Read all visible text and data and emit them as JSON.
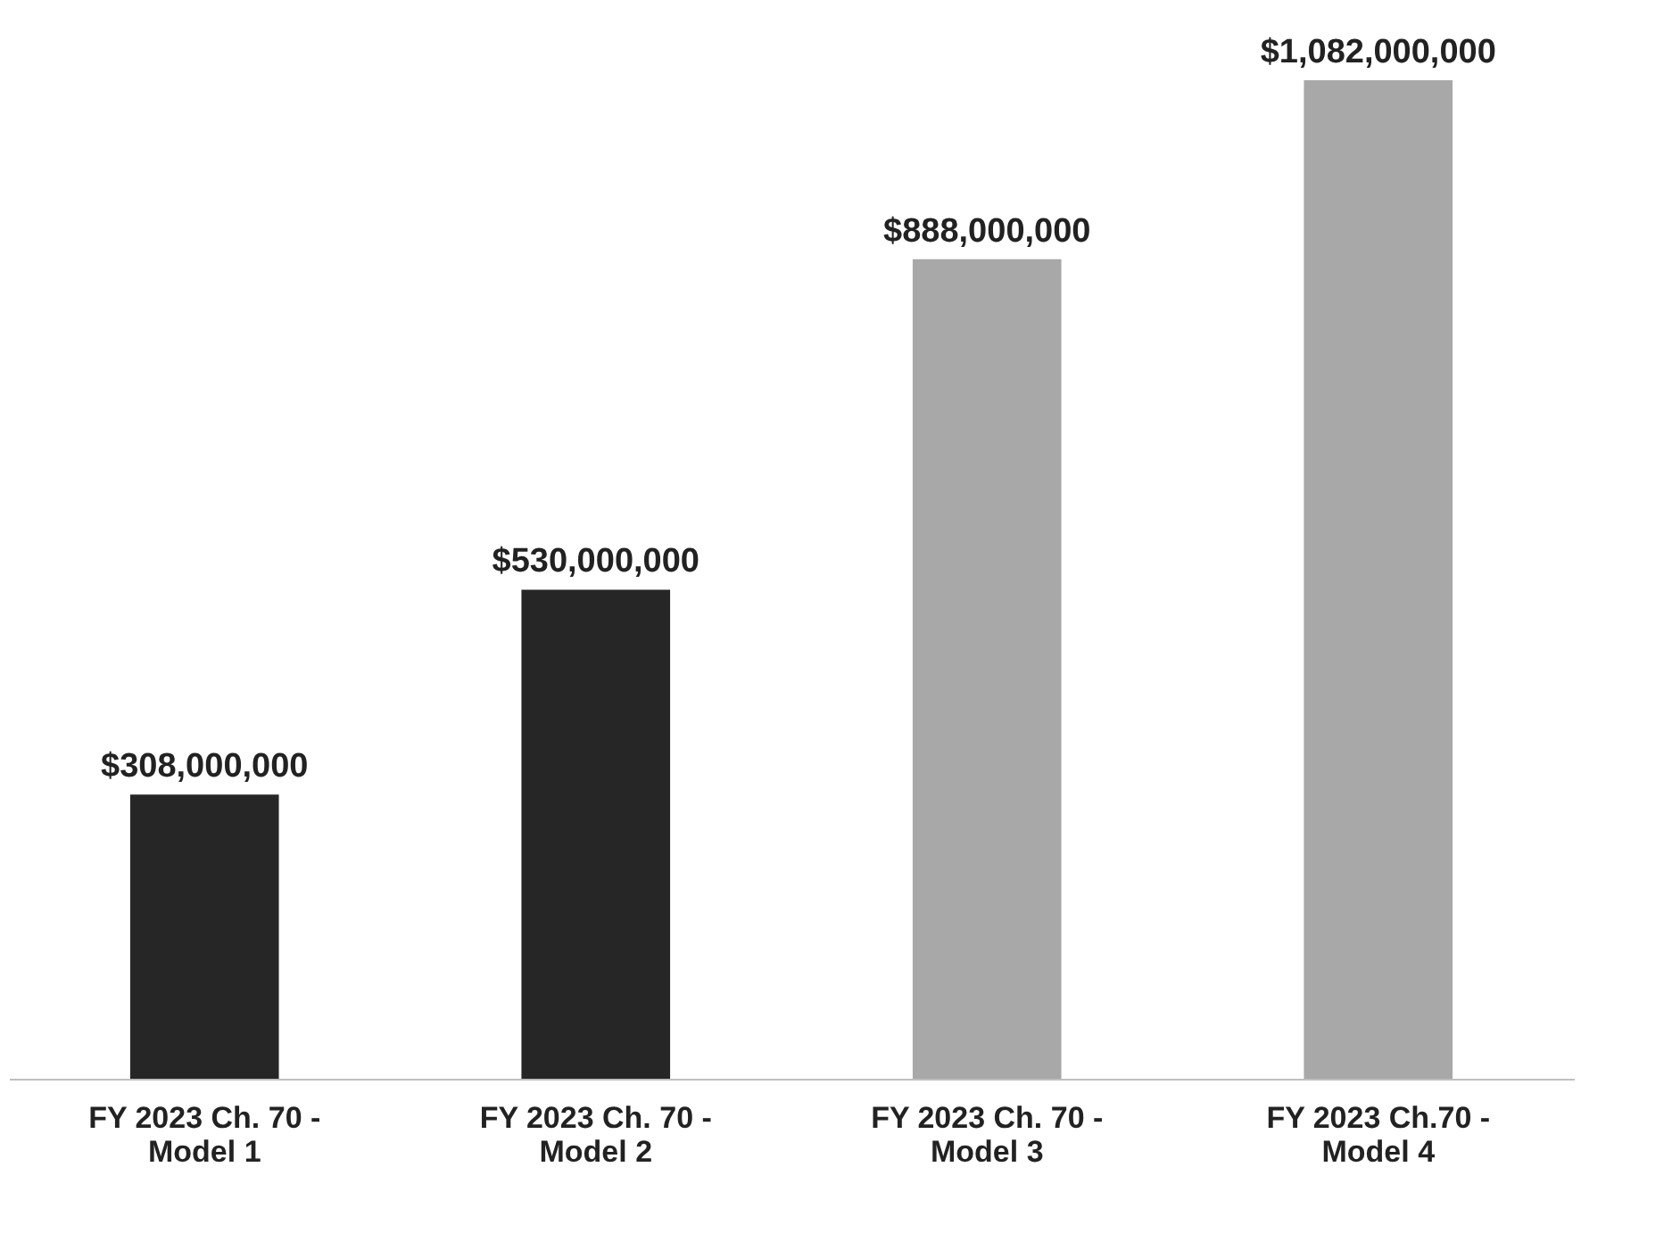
{
  "chart_data": {
    "type": "bar",
    "categories": [
      "FY 2023 Ch. 70 -\nModel 1",
      "FY 2023 Ch. 70 -\nModel 2",
      "FY 2023 Ch. 70 -\nModel 3",
      "FY 2023 Ch.70 -\nModel 4"
    ],
    "values": [
      308000000,
      530000000,
      888000000,
      1082000000
    ],
    "colors": [
      "#262626",
      "#262626",
      "#a8a8a8",
      "#a8a8a8"
    ],
    "value_labels": [
      "$308,000,000",
      "$530,000,000",
      "$888,000,000",
      "$1,082,000,000"
    ],
    "grid": false
  }
}
